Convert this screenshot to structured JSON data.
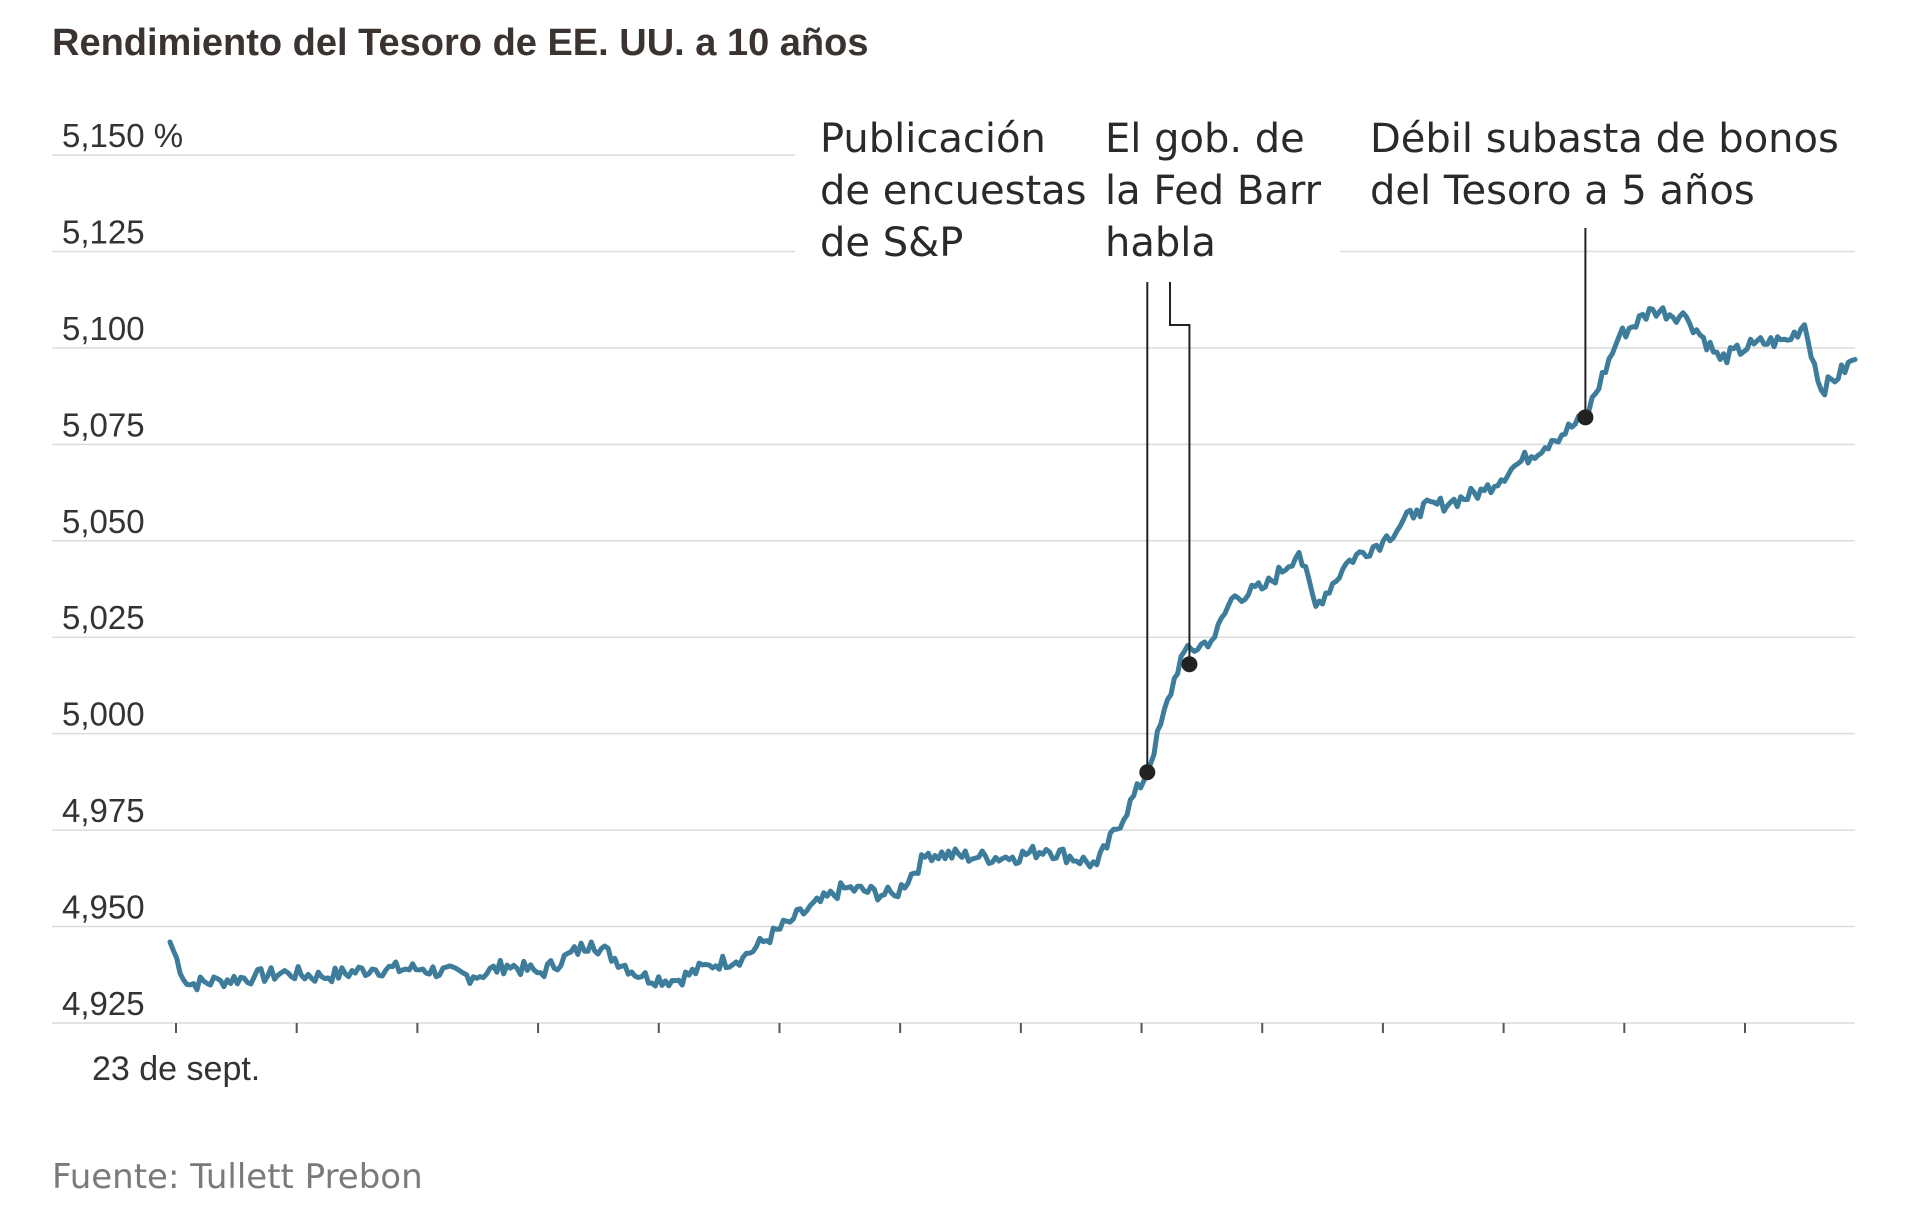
{
  "colors": {
    "series": "#3d7c9a",
    "grid": "#dcdcdc",
    "marker": "#222222"
  },
  "chart_data": {
    "type": "line",
    "title": "Rendimiento del Tesoro de EE. UU. a 10 años",
    "ylim": [
      4.925,
      5.15
    ],
    "yticks": [
      {
        "value": 5.15,
        "label": "5,150 %"
      },
      {
        "value": 5.125,
        "label": "5,125"
      },
      {
        "value": 5.1,
        "label": "5,100"
      },
      {
        "value": 5.075,
        "label": "5,075"
      },
      {
        "value": 5.05,
        "label": "5,050"
      },
      {
        "value": 5.025,
        "label": "5,025"
      },
      {
        "value": 5.0,
        "label": "5,000"
      },
      {
        "value": 4.975,
        "label": "4,975"
      },
      {
        "value": 4.95,
        "label": "4,950"
      },
      {
        "value": 4.925,
        "label": "4,925"
      }
    ],
    "xlabel_first": "23 de sept.",
    "grid": true,
    "series": [
      {
        "x": [
          0,
          1,
          3,
          5,
          7,
          9,
          12,
          15,
          18,
          20,
          22,
          25,
          28,
          30,
          32,
          34,
          37,
          40,
          43,
          45,
          48,
          50,
          52,
          55,
          58,
          60,
          62,
          63,
          65,
          67,
          68,
          70,
          72,
          74,
          76,
          78,
          80,
          82,
          84,
          86,
          88,
          90,
          92,
          94,
          96,
          97,
          98,
          100
        ],
        "values": [
          4.946,
          4.935,
          4.936,
          4.937,
          4.938,
          4.937,
          4.939,
          4.939,
          4.937,
          4.94,
          4.938,
          4.946,
          4.937,
          4.936,
          4.94,
          4.942,
          4.952,
          4.96,
          4.958,
          4.969,
          4.968,
          4.968,
          4.97,
          4.966,
          4.99,
          5.02,
          5.025,
          5.035,
          5.038,
          5.047,
          5.033,
          5.045,
          5.05,
          5.058,
          5.06,
          5.063,
          5.07,
          5.076,
          5.082,
          5.103,
          5.11,
          5.108,
          5.097,
          5.101,
          5.102,
          5.106,
          5.089,
          5.097
        ]
      }
    ],
    "annotations": [
      {
        "lines": [
          "Publicación",
          "de encuestas",
          "de S&P"
        ],
        "x": 58,
        "value": 4.99
      },
      {
        "lines": [
          "El gob. de",
          "la Fed Barr",
          "habla"
        ],
        "x": 60.5,
        "value": 5.018
      },
      {
        "lines": [
          "Débil subasta de bonos",
          "del Tesoro a 5 años"
        ],
        "x": 84,
        "value": 5.082
      }
    ],
    "source": "Fuente: Tullett Prebon"
  }
}
